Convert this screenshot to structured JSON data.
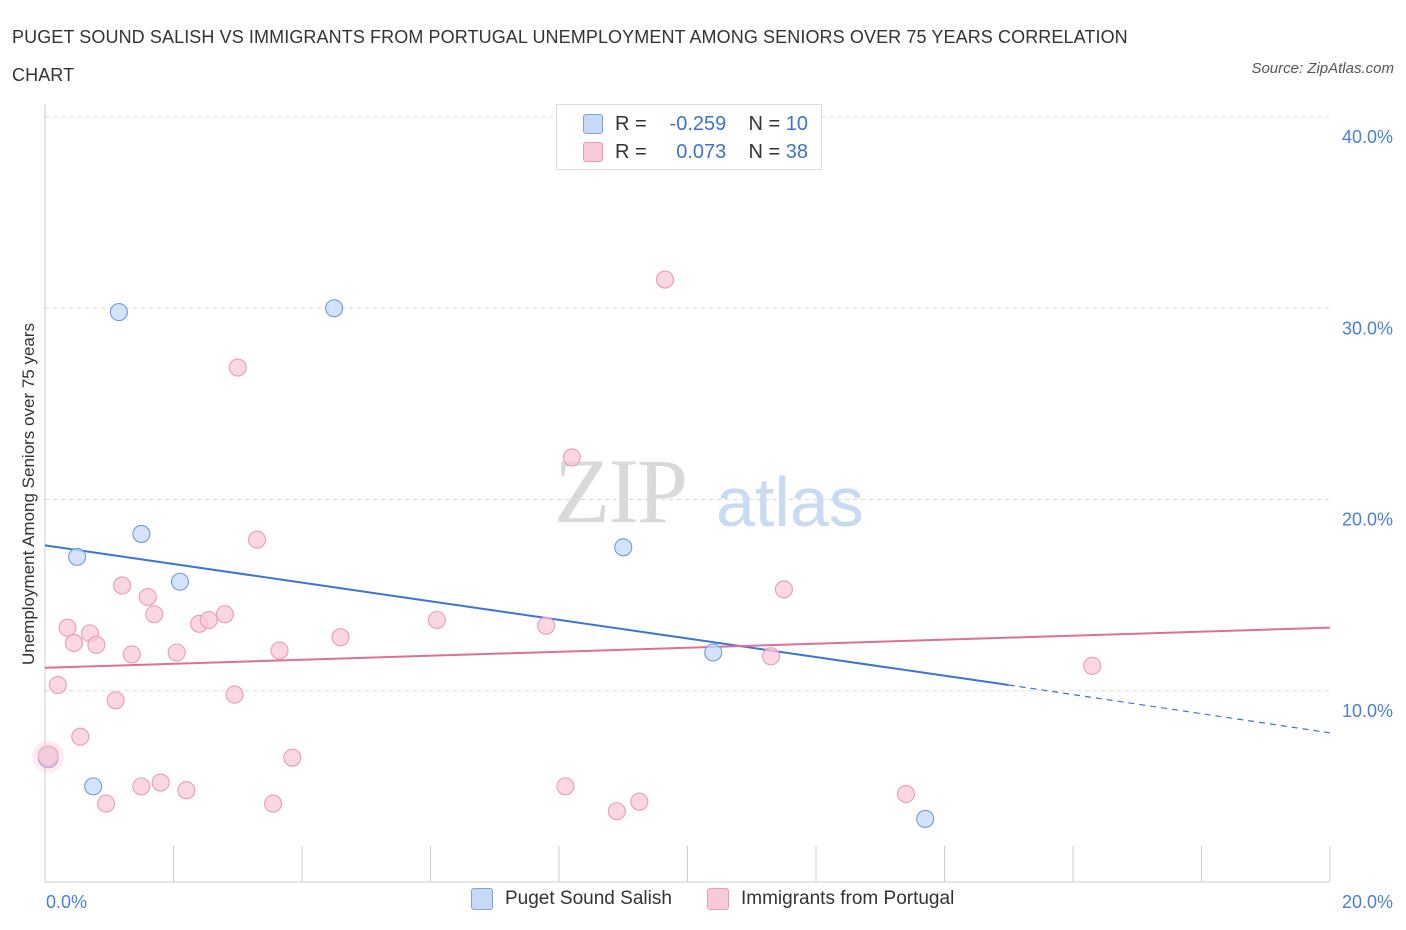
{
  "title": "PUGET SOUND SALISH VS IMMIGRANTS FROM PORTUGAL UNEMPLOYMENT AMONG SENIORS OVER 75 YEARS CORRELATION CHART",
  "source": "Source: ZipAtlas.com",
  "watermark": {
    "zip": "ZIP",
    "atlas": "atlas"
  },
  "legend": {
    "rows": [
      {
        "r_label": "R =",
        "r_value": "-0.259",
        "n_label": "N =",
        "n_value": "10"
      },
      {
        "r_label": "R =",
        "r_value": "0.073",
        "n_label": "N =",
        "n_value": "38"
      }
    ]
  },
  "colors": {
    "blue": "#3a75d4",
    "blue_fill": "#c6d9f5",
    "pink": "#e06f98",
    "pink_fill": "#f8c9d8",
    "tick": "#4a7fd4",
    "grid": "#d8d8d8"
  },
  "chart_data": {
    "type": "scatter",
    "title": "PUGET SOUND SALISH VS IMMIGRANTS FROM PORTUGAL UNEMPLOYMENT AMONG SENIORS OVER 75 YEARS CORRELATION CHART",
    "xlabel": "",
    "ylabel": "Unemployment Among Seniors over 75 years",
    "xlim": [
      0,
      20
    ],
    "ylim": [
      0,
      40
    ],
    "x_tick_labels": [
      "0.0%",
      "20.0%"
    ],
    "y_tick_labels": [
      "10.0%",
      "20.0%",
      "30.0%",
      "40.0%"
    ],
    "y_ticks": [
      10,
      20,
      30,
      40
    ],
    "grid": true,
    "legend_position": "bottom",
    "series": [
      {
        "name": "Puget Sound Salish",
        "points": [
          [
            0.05,
            6.5
          ],
          [
            0.5,
            17.0
          ],
          [
            0.75,
            5.0
          ],
          [
            1.15,
            29.8
          ],
          [
            1.5,
            18.2
          ],
          [
            2.1,
            15.7
          ],
          [
            4.5,
            30.0
          ],
          [
            9.0,
            17.5
          ],
          [
            10.4,
            12.0
          ],
          [
            13.7,
            3.3
          ]
        ],
        "trend": {
          "x0": 0.0,
          "y0": 17.6,
          "x1": 15.0,
          "y1": 10.3,
          "dash_x1": 20.0,
          "dash_y1": 7.8
        }
      },
      {
        "name": "Immigrants from Portugal",
        "points": [
          [
            0.05,
            6.6
          ],
          [
            0.2,
            10.3
          ],
          [
            0.35,
            13.3
          ],
          [
            0.45,
            12.5
          ],
          [
            0.55,
            7.6
          ],
          [
            0.7,
            13.0
          ],
          [
            0.8,
            12.4
          ],
          [
            0.95,
            4.1
          ],
          [
            1.1,
            9.5
          ],
          [
            1.2,
            15.5
          ],
          [
            1.35,
            11.9
          ],
          [
            1.5,
            5.0
          ],
          [
            1.6,
            14.9
          ],
          [
            1.7,
            14.0
          ],
          [
            1.8,
            5.2
          ],
          [
            2.05,
            12.0
          ],
          [
            2.2,
            4.8
          ],
          [
            2.4,
            13.5
          ],
          [
            2.55,
            13.7
          ],
          [
            2.8,
            14.0
          ],
          [
            2.95,
            9.8
          ],
          [
            3.0,
            26.9
          ],
          [
            3.3,
            17.9
          ],
          [
            3.55,
            4.1
          ],
          [
            3.65,
            12.1
          ],
          [
            3.85,
            6.5
          ],
          [
            4.6,
            12.8
          ],
          [
            6.1,
            13.7
          ],
          [
            7.8,
            13.4
          ],
          [
            8.1,
            5.0
          ],
          [
            8.2,
            22.2
          ],
          [
            8.9,
            3.7
          ],
          [
            9.25,
            4.2
          ],
          [
            9.65,
            31.5
          ],
          [
            11.3,
            11.8
          ],
          [
            11.5,
            15.3
          ],
          [
            13.4,
            4.6
          ],
          [
            16.3,
            11.3
          ]
        ],
        "trend": {
          "x0": 0.0,
          "y0": 11.2,
          "x1": 20.0,
          "y1": 13.3
        }
      }
    ]
  },
  "bottom_legend": [
    {
      "label": "Puget Sound Salish"
    },
    {
      "label": "Immigrants from Portugal"
    }
  ]
}
